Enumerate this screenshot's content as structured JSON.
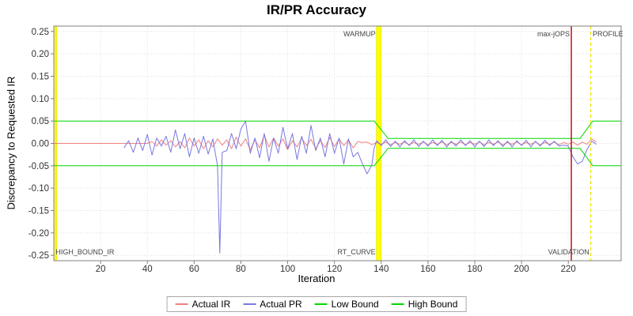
{
  "title": "IR/PR Accuracy",
  "axes": {
    "x": {
      "label": "Iteration",
      "range": [
        0,
        242.6
      ],
      "ticks": [
        20,
        40,
        60,
        80,
        100,
        120,
        140,
        160,
        180,
        200,
        220
      ]
    },
    "y": {
      "label": "Discrepancy to Requested IR",
      "range": [
        -0.262,
        0.262
      ],
      "ticks": [
        0.25,
        0.2,
        0.15,
        0.1,
        0.05,
        0.0,
        -0.05,
        -0.1,
        -0.15,
        -0.2,
        -0.25
      ]
    }
  },
  "annotations": [
    {
      "text": "WARMUP",
      "x": 137.6,
      "align": "end",
      "valign": "top"
    },
    {
      "text": "max-jOPS",
      "x": 220.6,
      "align": "end",
      "valign": "top"
    },
    {
      "text": "PROFILE",
      "x": 230.4,
      "align": "start",
      "valign": "top"
    },
    {
      "text": "HIGH_BOUND_IR",
      "x": 0.8,
      "align": "start",
      "valign": "bottom"
    },
    {
      "text": "RT_CURVE",
      "x": 137.6,
      "align": "end",
      "valign": "bottom"
    },
    {
      "text": "VALIDATION",
      "x": 229.0,
      "align": "end",
      "valign": "bottom"
    }
  ],
  "markers": [
    {
      "kind": "band",
      "from": 0.4,
      "to": 1.3,
      "color": "#ffff00",
      "name": "start-band"
    },
    {
      "kind": "band",
      "from": 137.9,
      "to": 140.0,
      "color": "#ffff00",
      "name": "warmup-band"
    },
    {
      "kind": "vline",
      "x": 221.3,
      "color": "#c00000",
      "name": "max-jops-line"
    },
    {
      "kind": "vline",
      "x": 229.6,
      "color": "#e6e600",
      "dash": "4 3",
      "name": "profile-line"
    }
  ],
  "colors": {
    "frame": "#808080",
    "grid": "#dedede",
    "tick_text": "#333333",
    "annotation_text": "#444444"
  },
  "chart_data": {
    "type": "line",
    "title": "IR/PR Accuracy",
    "xlabel": "Iteration",
    "ylabel": "Discrepancy to Requested IR",
    "xlim": [
      0,
      242.6
    ],
    "ylim": [
      -0.262,
      0.262
    ],
    "grid": true,
    "legend_position": "bottom",
    "series": [
      {
        "name": "Actual IR",
        "color": "#f08080",
        "points": [
          [
            0,
            0
          ],
          [
            4,
            0
          ],
          [
            8,
            0
          ],
          [
            12,
            0
          ],
          [
            16,
            0
          ],
          [
            20,
            0
          ],
          [
            24,
            0
          ],
          [
            28,
            0
          ],
          [
            32,
            0
          ],
          [
            36,
            0
          ],
          [
            40,
            0
          ],
          [
            42,
            0.004
          ],
          [
            44,
            -0.006
          ],
          [
            46,
            0.008
          ],
          [
            48,
            -0.004
          ],
          [
            50,
            0.006
          ],
          [
            52,
            -0.008
          ],
          [
            54,
            0.004
          ],
          [
            56,
            -0.01
          ],
          [
            58,
            0.012
          ],
          [
            60,
            -0.006
          ],
          [
            62,
            0.008
          ],
          [
            64,
            -0.012
          ],
          [
            66,
            0.006
          ],
          [
            68,
            -0.008
          ],
          [
            70,
            0.01
          ],
          [
            72,
            -0.004
          ],
          [
            74,
            0.008
          ],
          [
            76,
            -0.012
          ],
          [
            78,
            0.014
          ],
          [
            80,
            -0.006
          ],
          [
            82,
            0.01
          ],
          [
            84,
            -0.015
          ],
          [
            86,
            0.008
          ],
          [
            88,
            -0.01
          ],
          [
            90,
            0.018
          ],
          [
            92,
            -0.008
          ],
          [
            94,
            0.012
          ],
          [
            96,
            -0.006
          ],
          [
            98,
            0.01
          ],
          [
            100,
            -0.014
          ],
          [
            102,
            0.006
          ],
          [
            104,
            -0.008
          ],
          [
            106,
            0.012
          ],
          [
            108,
            -0.005
          ],
          [
            110,
            0.009
          ],
          [
            112,
            -0.012
          ],
          [
            114,
            0.006
          ],
          [
            116,
            -0.009
          ],
          [
            118,
            0.013
          ],
          [
            120,
            -0.007
          ],
          [
            122,
            0.01
          ],
          [
            124,
            -0.005
          ],
          [
            126,
            0.008
          ],
          [
            128,
            -0.01
          ],
          [
            130,
            0.004
          ],
          [
            132,
            0.002
          ],
          [
            134,
            0.003
          ],
          [
            136,
            -0.003
          ],
          [
            138,
            0.002
          ],
          [
            140,
            -0.002
          ],
          [
            142,
            0.003
          ],
          [
            144,
            -0.003
          ],
          [
            146,
            0.002
          ],
          [
            148,
            -0.002
          ],
          [
            150,
            0.003
          ],
          [
            152,
            -0.003
          ],
          [
            154,
            0.002
          ],
          [
            156,
            -0.002
          ],
          [
            158,
            0.003
          ],
          [
            160,
            -0.003
          ],
          [
            162,
            0.002
          ],
          [
            164,
            -0.002
          ],
          [
            166,
            0.003
          ],
          [
            168,
            -0.003
          ],
          [
            170,
            0.002
          ],
          [
            172,
            -0.002
          ],
          [
            174,
            0.003
          ],
          [
            176,
            -0.003
          ],
          [
            178,
            0.002
          ],
          [
            180,
            -0.002
          ],
          [
            182,
            0.003
          ],
          [
            184,
            -0.003
          ],
          [
            186,
            0.002
          ],
          [
            188,
            -0.002
          ],
          [
            190,
            0.003
          ],
          [
            192,
            -0.003
          ],
          [
            194,
            0.002
          ],
          [
            196,
            -0.002
          ],
          [
            198,
            0.003
          ],
          [
            200,
            -0.003
          ],
          [
            202,
            0.002
          ],
          [
            204,
            -0.002
          ],
          [
            206,
            0.003
          ],
          [
            208,
            -0.003
          ],
          [
            210,
            0.002
          ],
          [
            212,
            -0.002
          ],
          [
            214,
            0.003
          ],
          [
            216,
            -0.003
          ],
          [
            218,
            0.002
          ],
          [
            220,
            -0.002
          ],
          [
            222,
            0.003
          ],
          [
            224,
            -0.004
          ],
          [
            226,
            0.003
          ],
          [
            228,
            -0.002
          ],
          [
            230,
            0.01
          ],
          [
            232,
            0.003
          ]
        ]
      },
      {
        "name": "Actual PR",
        "color": "#7878e0",
        "points": [
          [
            30,
            -0.01
          ],
          [
            32,
            0.006
          ],
          [
            34,
            -0.02
          ],
          [
            36,
            0.012
          ],
          [
            38,
            -0.016
          ],
          [
            40,
            0.02
          ],
          [
            42,
            -0.026
          ],
          [
            44,
            0.012
          ],
          [
            46,
            -0.006
          ],
          [
            48,
            0.016
          ],
          [
            50,
            -0.02
          ],
          [
            52,
            0.03
          ],
          [
            54,
            -0.012
          ],
          [
            56,
            0.022
          ],
          [
            58,
            -0.03
          ],
          [
            60,
            0.012
          ],
          [
            62,
            -0.022
          ],
          [
            64,
            0.016
          ],
          [
            66,
            -0.024
          ],
          [
            68,
            0.01
          ],
          [
            70,
            -0.05
          ],
          [
            71,
            -0.245
          ],
          [
            72,
            -0.02
          ],
          [
            74,
            -0.016
          ],
          [
            76,
            0.022
          ],
          [
            78,
            -0.012
          ],
          [
            80,
            0.032
          ],
          [
            82,
            0.05
          ],
          [
            84,
            -0.022
          ],
          [
            86,
            0.012
          ],
          [
            88,
            -0.032
          ],
          [
            90,
            0.022
          ],
          [
            92,
            -0.04
          ],
          [
            94,
            0.012
          ],
          [
            96,
            -0.022
          ],
          [
            98,
            0.036
          ],
          [
            100,
            -0.012
          ],
          [
            102,
            0.022
          ],
          [
            104,
            -0.036
          ],
          [
            106,
            0.016
          ],
          [
            108,
            -0.022
          ],
          [
            110,
            0.04
          ],
          [
            112,
            -0.016
          ],
          [
            114,
            0.012
          ],
          [
            116,
            -0.03
          ],
          [
            118,
            0.022
          ],
          [
            120,
            -0.022
          ],
          [
            122,
            0.012
          ],
          [
            124,
            -0.046
          ],
          [
            126,
            0.01
          ],
          [
            128,
            -0.03
          ],
          [
            130,
            -0.02
          ],
          [
            132,
            -0.046
          ],
          [
            134,
            -0.068
          ],
          [
            136,
            -0.048
          ],
          [
            137,
            -0.01
          ],
          [
            138,
            0.006
          ],
          [
            140,
            -0.005
          ],
          [
            142,
            0.008
          ],
          [
            144,
            -0.007
          ],
          [
            146,
            0.005
          ],
          [
            148,
            -0.008
          ],
          [
            150,
            0.006
          ],
          [
            152,
            -0.005
          ],
          [
            154,
            0.008
          ],
          [
            156,
            -0.007
          ],
          [
            158,
            0.005
          ],
          [
            160,
            -0.006
          ],
          [
            162,
            0.008
          ],
          [
            164,
            -0.005
          ],
          [
            166,
            0.007
          ],
          [
            168,
            -0.008
          ],
          [
            170,
            0.005
          ],
          [
            172,
            -0.006
          ],
          [
            174,
            0.008
          ],
          [
            176,
            -0.005
          ],
          [
            178,
            0.006
          ],
          [
            180,
            -0.008
          ],
          [
            182,
            0.005
          ],
          [
            184,
            -0.007
          ],
          [
            186,
            0.008
          ],
          [
            188,
            -0.005
          ],
          [
            190,
            0.006
          ],
          [
            192,
            -0.007
          ],
          [
            194,
            0.005
          ],
          [
            196,
            -0.008
          ],
          [
            198,
            0.006
          ],
          [
            200,
            -0.005
          ],
          [
            202,
            0.007
          ],
          [
            204,
            -0.008
          ],
          [
            206,
            0.005
          ],
          [
            208,
            -0.006
          ],
          [
            210,
            0.007
          ],
          [
            212,
            -0.005
          ],
          [
            214,
            0.005
          ],
          [
            216,
            -0.006
          ],
          [
            218,
            -0.004
          ],
          [
            220,
            -0.006
          ],
          [
            222,
            -0.03
          ],
          [
            224,
            -0.046
          ],
          [
            226,
            -0.04
          ],
          [
            228,
            -0.014
          ],
          [
            230,
            0.005
          ],
          [
            232,
            -0.002
          ]
        ]
      },
      {
        "name": "Low Bound",
        "color": "#00d800",
        "points": [
          [
            0,
            -0.05
          ],
          [
            137,
            -0.05
          ],
          [
            143,
            -0.011
          ],
          [
            225,
            -0.011
          ],
          [
            230.5,
            -0.05
          ],
          [
            242.6,
            -0.05
          ]
        ]
      },
      {
        "name": "High Bound",
        "color": "#00d800",
        "points": [
          [
            0,
            0.05
          ],
          [
            137,
            0.05
          ],
          [
            143,
            0.011
          ],
          [
            225,
            0.011
          ],
          [
            230.5,
            0.05
          ],
          [
            242.6,
            0.05
          ]
        ]
      }
    ]
  }
}
